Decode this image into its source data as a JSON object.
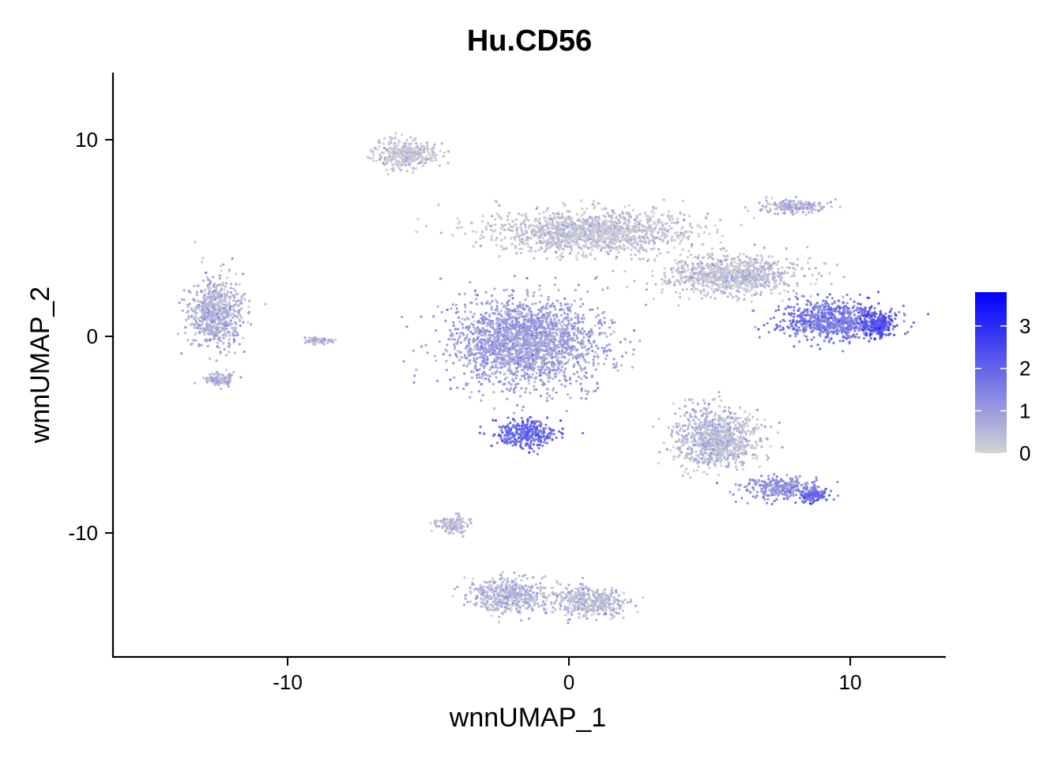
{
  "chart_data": {
    "type": "scatter",
    "title": "Hu.CD56",
    "xlabel": "wnnUMAP_1",
    "ylabel": "wnnUMAP_2",
    "xlim": [
      -16,
      13.5
    ],
    "ylim": [
      -16.3,
      13.3
    ],
    "x_ticks": [
      -10,
      0,
      10
    ],
    "y_ticks": [
      -10,
      0,
      10
    ],
    "x_tick_labels": [
      "-10",
      "0",
      "10"
    ],
    "y_tick_labels": [
      "-10",
      "0",
      "10"
    ],
    "grid": false,
    "legend": {
      "placement": "right",
      "type": "continuous colorbar",
      "range": [
        0,
        3.8
      ],
      "ticks": [
        0,
        1,
        2,
        3
      ],
      "tick_labels": [
        "0",
        "1",
        "2",
        "3"
      ],
      "low_color": "#d3d3d3",
      "high_color": "#0000ff"
    },
    "clusters": [
      {
        "name": "left island",
        "center": [
          -12.6,
          1.2
        ],
        "spread": [
          0.9,
          1.6
        ],
        "expression": 0.6
      },
      {
        "name": "left island lower",
        "center": [
          -12.4,
          -2.2
        ],
        "spread": [
          0.5,
          0.3
        ],
        "expression": 0.6
      },
      {
        "name": "small satellite",
        "center": [
          -8.9,
          -0.2
        ],
        "spread": [
          0.4,
          0.15
        ],
        "expression": 0.5
      },
      {
        "name": "top-left arm",
        "center": [
          -5.8,
          9.3
        ],
        "spread": [
          1.0,
          0.7
        ],
        "expression": 0.15
      },
      {
        "name": "central body upper",
        "center": [
          0.8,
          5.3
        ],
        "spread": [
          3.2,
          1.0
        ],
        "expression": 0.2
      },
      {
        "name": "central bridge",
        "center": [
          5.8,
          3.1
        ],
        "spread": [
          2.2,
          0.9
        ],
        "expression": 0.3
      },
      {
        "name": "central body main",
        "center": [
          -1.6,
          -0.3
        ],
        "spread": [
          2.4,
          2.0
        ],
        "expression": 0.9
      },
      {
        "name": "central hot spot",
        "center": [
          -1.5,
          -4.9
        ],
        "spread": [
          1.0,
          0.6
        ],
        "expression": 1.9
      },
      {
        "name": "right arm",
        "center": [
          9.5,
          0.8
        ],
        "spread": [
          1.8,
          0.9
        ],
        "expression": 1.6
      },
      {
        "name": "right tip",
        "center": [
          11.0,
          0.6
        ],
        "spread": [
          0.5,
          0.6
        ],
        "expression": 2.3
      },
      {
        "name": "top-right island",
        "center": [
          8.0,
          6.6
        ],
        "spread": [
          1.0,
          0.3
        ],
        "expression": 0.6
      },
      {
        "name": "lower right body",
        "center": [
          5.2,
          -5.2
        ],
        "spread": [
          1.4,
          1.4
        ],
        "expression": 0.4
      },
      {
        "name": "lower right arm",
        "center": [
          7.5,
          -7.7
        ],
        "spread": [
          1.2,
          0.5
        ],
        "expression": 1.1
      },
      {
        "name": "lower right tip",
        "center": [
          8.7,
          -8.1
        ],
        "spread": [
          0.5,
          0.3
        ],
        "expression": 2.0
      },
      {
        "name": "bottom cluster left",
        "center": [
          -2.1,
          -13.2
        ],
        "spread": [
          1.3,
          0.8
        ],
        "expression": 0.5
      },
      {
        "name": "bottom cluster right",
        "center": [
          0.8,
          -13.5
        ],
        "spread": [
          1.2,
          0.7
        ],
        "expression": 0.4
      },
      {
        "name": "bottom arm",
        "center": [
          -4.2,
          -9.6
        ],
        "spread": [
          0.5,
          0.4
        ],
        "expression": 0.4
      }
    ]
  }
}
